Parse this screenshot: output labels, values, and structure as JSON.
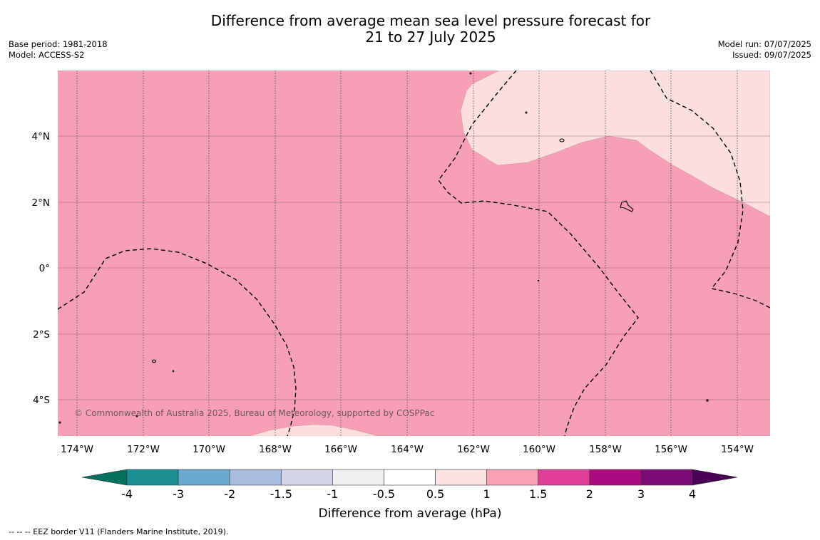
{
  "title_line1": "Difference from average mean sea level pressure forecast for",
  "title_line2": "21 to 27 July 2025",
  "base_period": "Base period: 1981-2018",
  "model": "Model: ACCESS-S2",
  "model_run": "Model run: 07/07/2025",
  "issued": "Issued: 09/07/2025",
  "lat_labels": [
    "4°N",
    "2°N",
    "0°",
    "2°S",
    "4°S"
  ],
  "lon_labels": [
    "174°W",
    "172°W",
    "170°W",
    "168°W",
    "166°W",
    "164°W",
    "162°W",
    "160°W",
    "158°W",
    "156°W",
    "154°W"
  ],
  "copyright": "© Commonwealth of Australia 2025, Bureau of Meteorology, supported by COSPPac",
  "colorbar": {
    "ticks": [
      "-4",
      "-3",
      "-2",
      "-1.5",
      "-1",
      "-0.5",
      "0.5",
      "1",
      "1.5",
      "2",
      "3",
      "4"
    ],
    "colors": [
      "#1a8f94",
      "#6aa9d0",
      "#a9bddf",
      "#d2d2e8",
      "#f0eff2",
      "#ffffff",
      "#fde0e0",
      "#f7a0b6",
      "#df3f98",
      "#ad0a7f",
      "#7b0a74"
    ],
    "under_color": "#05705e",
    "over_color": "#4a0256",
    "title": "Difference from average (hPa)"
  },
  "map_colors": {
    "field_main": "#f79fb6",
    "field_light": "#fddedf"
  },
  "legend_footer": "--  --  -- EEZ border V11 (Flanders Marine Institute, 2019)."
}
